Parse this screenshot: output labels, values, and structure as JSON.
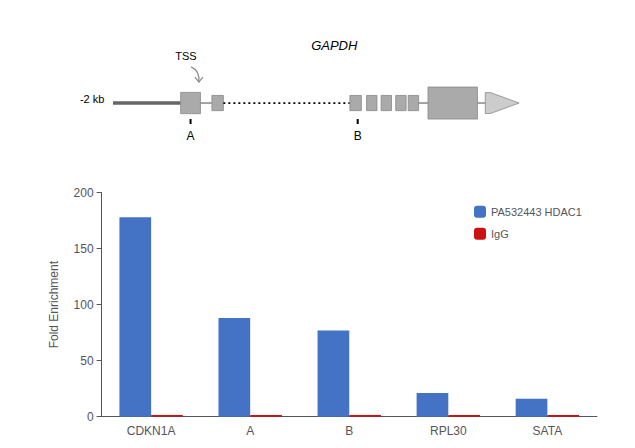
{
  "chart_data": {
    "type": "bar",
    "categories": [
      "CDKN1A",
      "A",
      "B",
      "RPL30",
      "SATA"
    ],
    "series": [
      {
        "name": "PA532443 HDAC1",
        "color": "#4472c4",
        "values": [
          178,
          88,
          77,
          21,
          16
        ]
      },
      {
        "name": "IgG",
        "color": "#cc1111",
        "values": [
          1.5,
          1.5,
          1.5,
          1.5,
          1.5
        ]
      }
    ],
    "ylabel": "Fold Enrichment",
    "ylim": [
      0,
      200
    ],
    "yticks": [
      0,
      50,
      100,
      150,
      200
    ],
    "grid": false,
    "legend": "upper right",
    "annotations": [
      "GAPDH",
      "-2 kb",
      "TSS",
      "A",
      "B"
    ]
  }
}
